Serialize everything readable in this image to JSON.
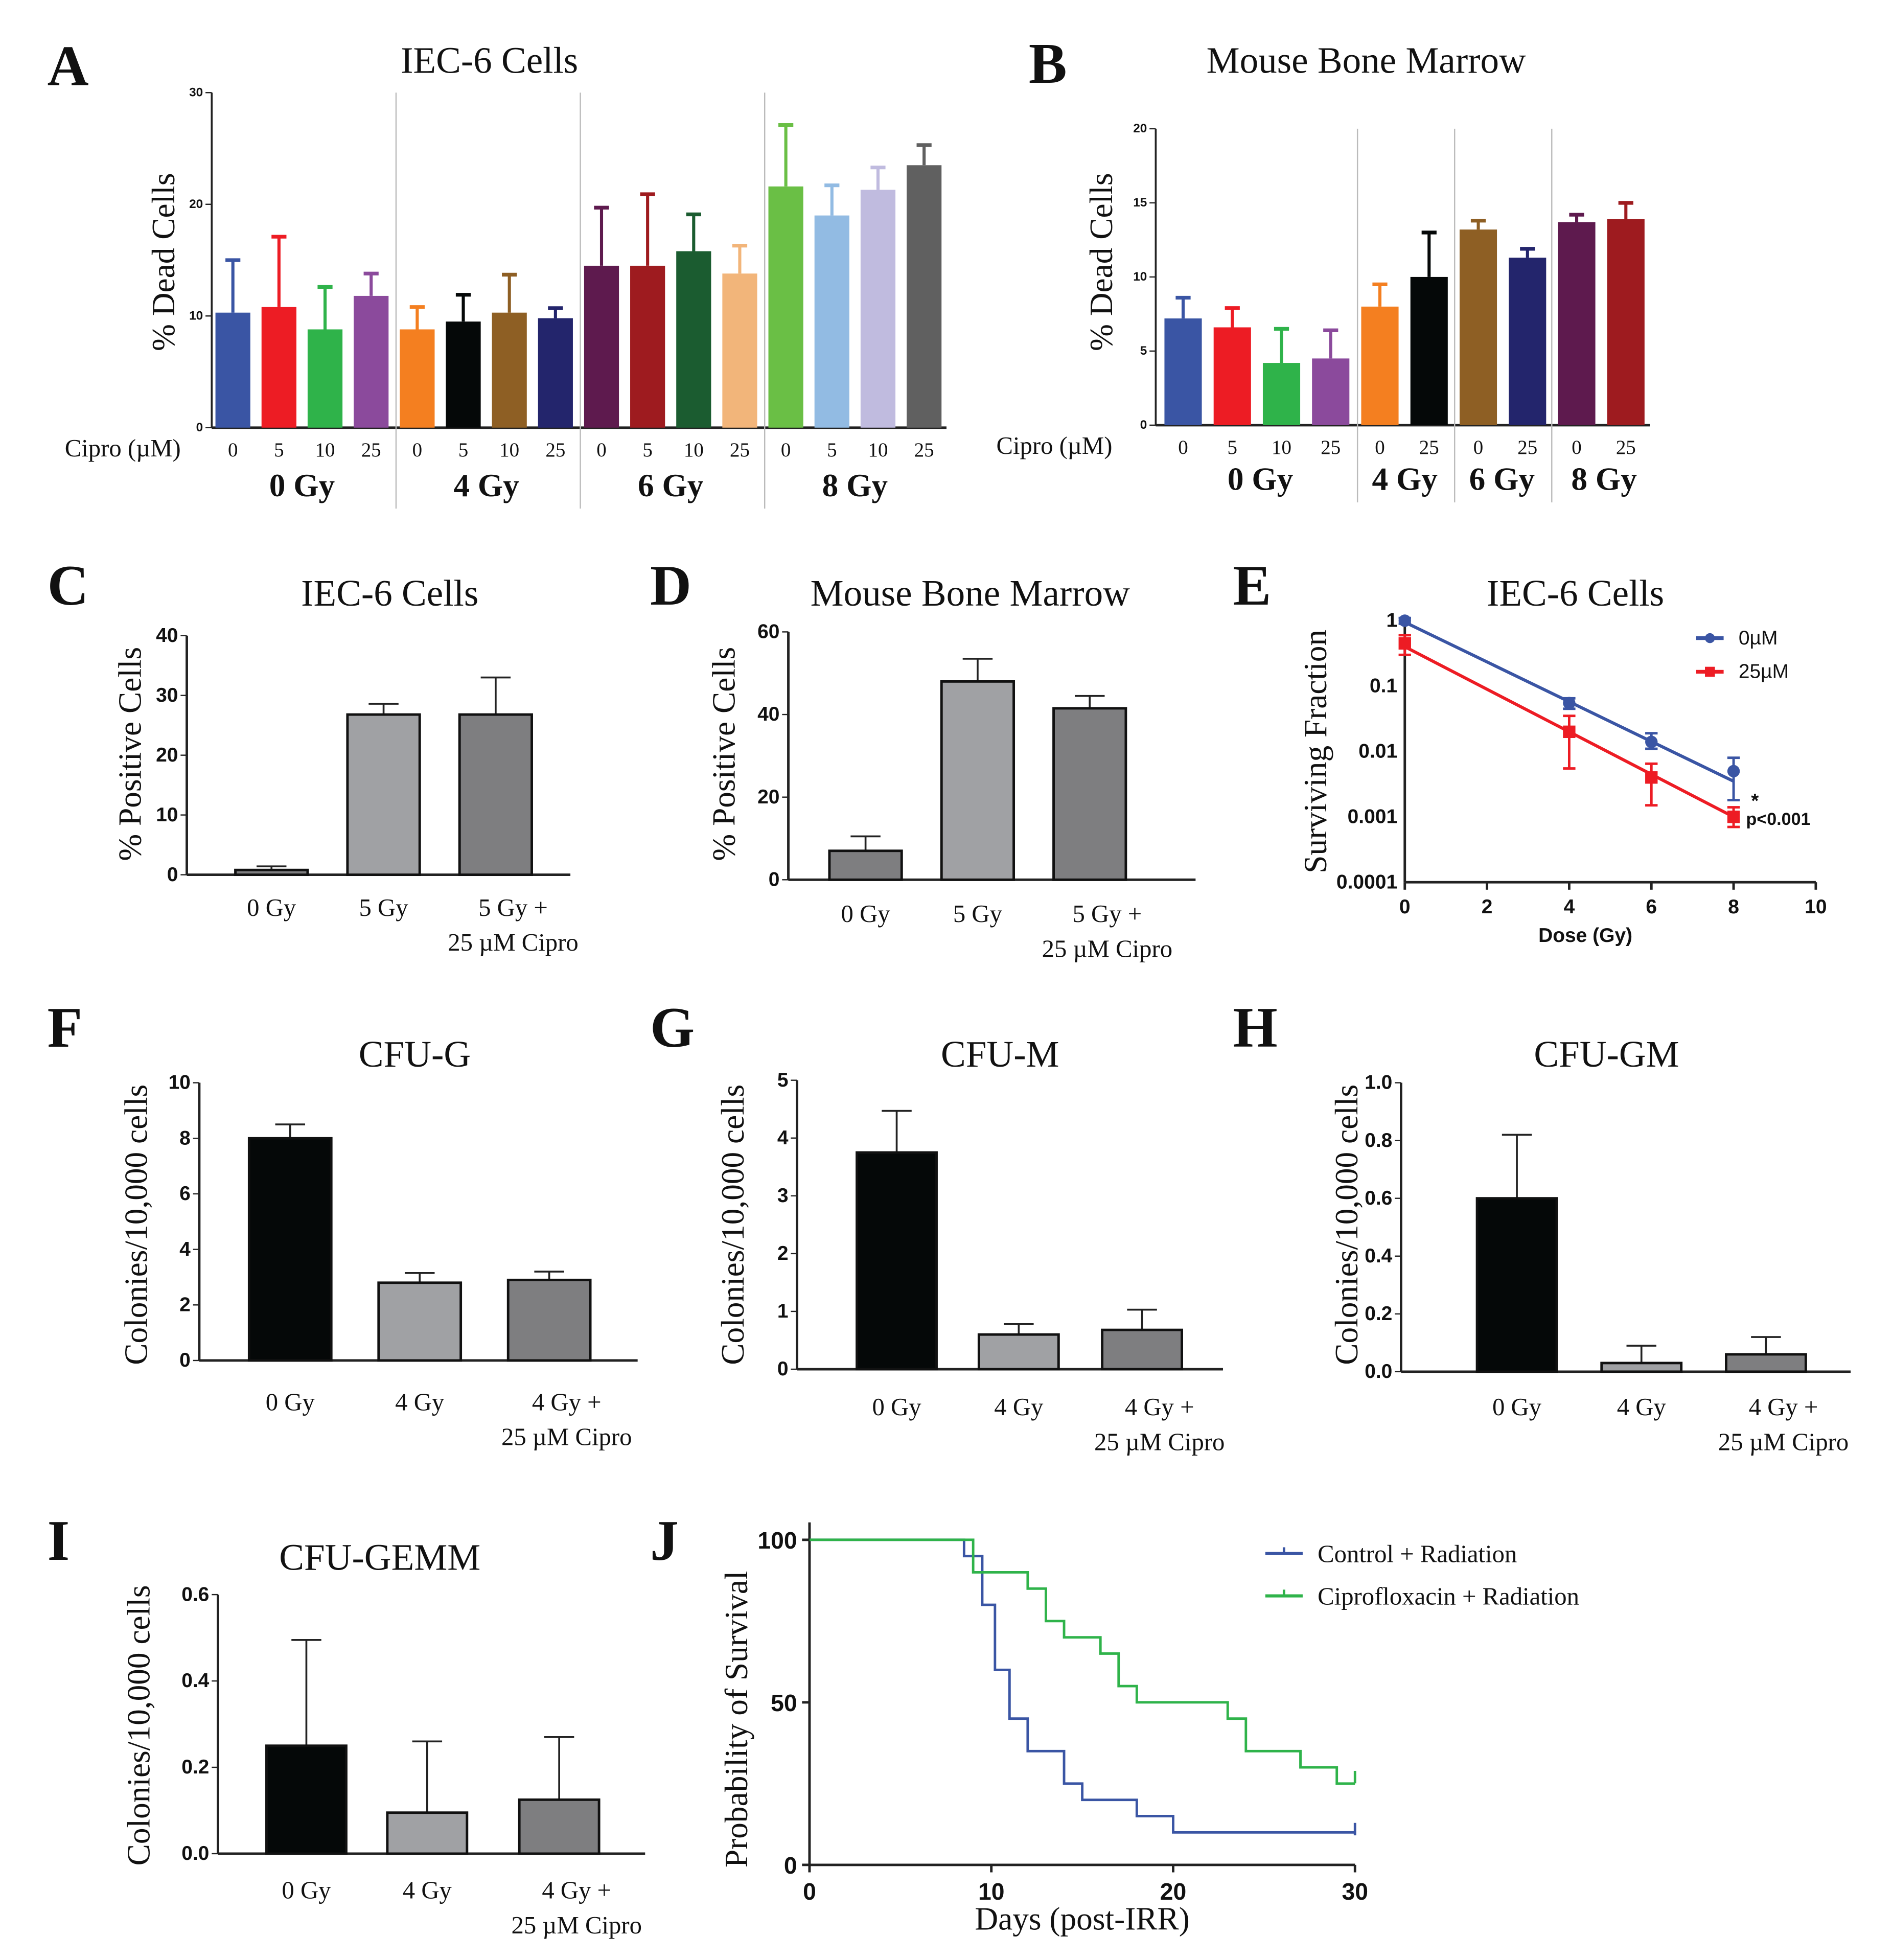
{
  "chart_data": [
    {
      "id": "A",
      "type": "bar",
      "panel_label": "A",
      "title": "IEC-6 Cells",
      "ylabel": "% Dead Cells",
      "xlabel": "Cipro (µM)",
      "ylim": [
        0,
        30
      ],
      "yticks": [
        0,
        10,
        20,
        30
      ],
      "categories": [
        "0",
        "5",
        "10",
        "25",
        "0",
        "5",
        "10",
        "25",
        "0",
        "5",
        "10",
        "25",
        "0",
        "5",
        "10",
        "25"
      ],
      "groups": [
        "0 Gy",
        "4 Gy",
        "6 Gy",
        "8 Gy"
      ],
      "values": [
        10.3,
        10.8,
        8.8,
        11.8,
        8.8,
        9.5,
        10.3,
        9.8,
        14.5,
        14.5,
        15.8,
        13.8,
        21.6,
        19.0,
        21.3,
        23.5
      ],
      "errors": [
        4.7,
        6.3,
        3.8,
        2.0,
        2.0,
        2.4,
        3.4,
        0.9,
        5.2,
        6.4,
        3.3,
        2.5,
        5.5,
        2.7,
        2.0,
        1.8
      ],
      "colors": [
        "#3a55a4",
        "#ed1c24",
        "#2fb34a",
        "#8b4a9c",
        "#f47f20",
        "#050808",
        "#8e5f24",
        "#23256c",
        "#5e1a4e",
        "#9e1b1f",
        "#1b5c30",
        "#f2b57a",
        "#6abf45",
        "#92bbe3",
        "#c0bbdf",
        "#606060"
      ]
    },
    {
      "id": "B",
      "type": "bar",
      "panel_label": "B",
      "title": "Mouse Bone Marrow",
      "ylabel": "% Dead Cells",
      "xlabel": "Cipro (µM)",
      "ylim": [
        0,
        20
      ],
      "yticks": [
        0,
        5,
        10,
        15,
        20
      ],
      "categories": [
        "0",
        "5",
        "10",
        "25",
        "0",
        "25",
        "0",
        "25",
        "0",
        "25"
      ],
      "groups": [
        "0 Gy",
        "4 Gy",
        "6 Gy",
        "8 Gy"
      ],
      "values": [
        7.2,
        6.6,
        4.2,
        4.5,
        8.0,
        10.0,
        13.2,
        11.3,
        13.7,
        13.9
      ],
      "errors": [
        1.4,
        1.3,
        2.3,
        1.9,
        1.5,
        3.0,
        0.6,
        0.6,
        0.5,
        1.1
      ],
      "colors": [
        "#3a55a4",
        "#ed1c24",
        "#2fb34a",
        "#8b4a9c",
        "#f47f20",
        "#050808",
        "#8e5f24",
        "#23256c",
        "#5e1a4e",
        "#9e1b1f"
      ]
    },
    {
      "id": "C",
      "type": "bar",
      "panel_label": "C",
      "title": "IEC-6 Cells",
      "ylabel": "% Positive Cells",
      "ylim": [
        0,
        40
      ],
      "yticks": [
        0,
        10,
        20,
        30,
        40
      ],
      "categories": [
        [
          "0 Gy"
        ],
        [
          "5 Gy"
        ],
        [
          "5 Gy +",
          "25 µM Cipro"
        ]
      ],
      "values": [
        0.8,
        26.8,
        26.8
      ],
      "errors": [
        0.6,
        1.8,
        6.2
      ],
      "colors": [
        "#7e7e80",
        "#a0a1a4",
        "#7e7e80"
      ]
    },
    {
      "id": "D",
      "type": "bar",
      "panel_label": "D",
      "title": "Mouse Bone Marrow",
      "ylabel": "% Positive Cells",
      "ylim": [
        0,
        60
      ],
      "yticks": [
        0,
        20,
        40,
        60
      ],
      "categories": [
        [
          "0 Gy"
        ],
        [
          "5 Gy"
        ],
        [
          "5 Gy +",
          "25 µM Cipro"
        ]
      ],
      "values": [
        7,
        48,
        41.5
      ],
      "errors": [
        3.5,
        5.5,
        3
      ],
      "colors": [
        "#7e7e80",
        "#a0a1a4",
        "#7e7e80"
      ]
    },
    {
      "id": "E",
      "type": "line",
      "panel_label": "E",
      "title": "IEC-6 Cells",
      "ylabel": "Surviving Fraction",
      "xlabel": "Dose (Gy)",
      "yscale": "log",
      "ylim": [
        0.0001,
        1
      ],
      "xlim": [
        0,
        10
      ],
      "yticks": [
        "1",
        "0.1",
        "0.01",
        "0.001",
        "0.0001"
      ],
      "xticks": [
        0,
        2,
        4,
        6,
        8,
        10
      ],
      "series": [
        {
          "name": "0µM",
          "color": "#3a55a4",
          "marker": "circle",
          "x": [
            0,
            4,
            6,
            8
          ],
          "y": [
            1,
            0.055,
            0.014,
            0.005
          ],
          "err_lo": [
            0.9,
            0.045,
            0.011,
            0.0018
          ],
          "err_hi": [
            1.1,
            0.065,
            0.019,
            0.008
          ],
          "fit": [
            0.95,
            0.0035
          ]
        },
        {
          "name": "25µM",
          "color": "#ed1c24",
          "marker": "square",
          "x": [
            0,
            4,
            6,
            8
          ],
          "y": [
            0.45,
            0.02,
            0.004,
            0.001
          ],
          "err_lo": [
            0.3,
            0.0055,
            0.0015,
            0.0007
          ],
          "err_hi": [
            0.6,
            0.035,
            0.0065,
            0.0014
          ],
          "fit": [
            0.4,
            0.001
          ]
        }
      ],
      "annotations": [
        "*",
        "p<0.001"
      ],
      "legend": "top-right"
    },
    {
      "id": "F",
      "type": "bar",
      "panel_label": "F",
      "title": "CFU-G",
      "ylabel": "Colonies/10,000 cells",
      "ylim": [
        0,
        10
      ],
      "yticks": [
        0,
        2,
        4,
        6,
        8,
        10
      ],
      "categories": [
        [
          "0 Gy"
        ],
        [
          "4 Gy"
        ],
        [
          "4 Gy +",
          "25 µM Cipro"
        ]
      ],
      "values": [
        8,
        2.8,
        2.9
      ],
      "errors": [
        0.5,
        0.35,
        0.3
      ],
      "colors": [
        "#050808",
        "#a0a1a4",
        "#7e7e80"
      ]
    },
    {
      "id": "G",
      "type": "bar",
      "panel_label": "G",
      "title": "CFU-M",
      "ylabel": "Colonies/10,000 cells",
      "ylim": [
        0,
        5
      ],
      "yticks": [
        0,
        1,
        2,
        3,
        4,
        5
      ],
      "categories": [
        [
          "0 Gy"
        ],
        [
          "4 Gy"
        ],
        [
          "4 Gy +",
          "25 µM Cipro"
        ]
      ],
      "values": [
        3.75,
        0.6,
        0.68
      ],
      "errors": [
        0.72,
        0.18,
        0.35
      ],
      "colors": [
        "#050808",
        "#a0a1a4",
        "#7e7e80"
      ]
    },
    {
      "id": "H",
      "type": "bar",
      "panel_label": "H",
      "title": "CFU-GM",
      "ylabel": "Colonies/10,000 cells",
      "ylim": [
        0,
        1
      ],
      "yticks": [
        "0.0",
        "0.2",
        "0.4",
        "0.6",
        "0.8",
        "1.0"
      ],
      "categories": [
        [
          "0 Gy"
        ],
        [
          "4 Gy"
        ],
        [
          "4 Gy +",
          "25 µM Cipro"
        ]
      ],
      "values": [
        0.6,
        0.03,
        0.06
      ],
      "errors": [
        0.22,
        0.06,
        0.06
      ],
      "colors": [
        "#050808",
        "#a0a1a4",
        "#7e7e80"
      ]
    },
    {
      "id": "I",
      "type": "bar",
      "panel_label": "I",
      "title": "CFU-GEMM",
      "ylabel": "Colonies/10,000 cells",
      "ylim": [
        0,
        0.6
      ],
      "yticks": [
        "0.0",
        "0.2",
        "0.4",
        "0.6"
      ],
      "categories": [
        [
          "0 Gy"
        ],
        [
          "4 Gy"
        ],
        [
          "4 Gy +",
          "25 µM Cipro"
        ]
      ],
      "values": [
        0.25,
        0.095,
        0.125
      ],
      "errors": [
        0.245,
        0.165,
        0.145
      ],
      "colors": [
        "#050808",
        "#a0a1a4",
        "#7e7e80"
      ]
    },
    {
      "id": "J",
      "type": "line",
      "panel_label": "J",
      "ylabel": "Probability of Survival",
      "xlabel": "Days (post-IRR)",
      "xlim": [
        0,
        30
      ],
      "ylim": [
        0,
        100
      ],
      "xticks": [
        0,
        10,
        20,
        30
      ],
      "yticks": [
        0,
        50,
        100
      ],
      "series": [
        {
          "name": "Control + Radiation",
          "color": "#3a55a4",
          "steps": [
            [
              0,
              100
            ],
            [
              8.5,
              95
            ],
            [
              9.5,
              80
            ],
            [
              10.2,
              60
            ],
            [
              11,
              45
            ],
            [
              12,
              35
            ],
            [
              14,
              25
            ],
            [
              15,
              20
            ],
            [
              18,
              15
            ],
            [
              20,
              10
            ],
            [
              30,
              10
            ]
          ],
          "censor_end": 11
        },
        {
          "name": "Ciprofloxacin + Radiation",
          "color": "#2fb34a",
          "steps": [
            [
              0,
              100
            ],
            [
              9,
              90
            ],
            [
              12,
              85
            ],
            [
              13,
              75
            ],
            [
              14,
              70
            ],
            [
              16,
              65
            ],
            [
              17,
              55
            ],
            [
              18,
              50
            ],
            [
              23,
              45
            ],
            [
              24,
              35
            ],
            [
              27,
              30
            ],
            [
              29,
              25
            ],
            [
              30,
              25
            ]
          ],
          "censor_end": 27
        }
      ],
      "legend": "top-right"
    }
  ]
}
